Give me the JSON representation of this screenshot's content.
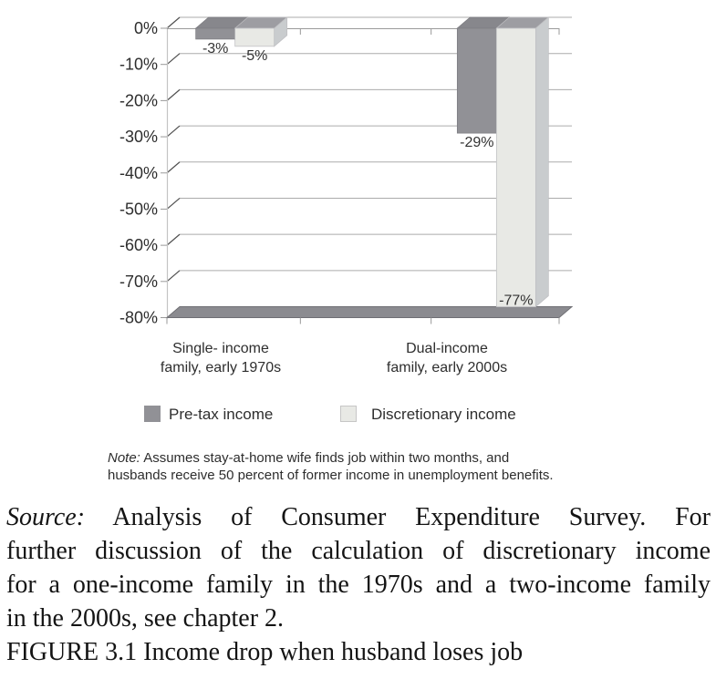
{
  "chart_data": {
    "type": "bar",
    "title": "",
    "xlabel": "",
    "ylabel": "",
    "categories": [
      {
        "line1": "Single- income",
        "line2": "family, early 1970s"
      },
      {
        "line1": "Dual-income",
        "line2": "family, early 2000s"
      }
    ],
    "series": [
      {
        "name": "Pre-tax income",
        "values": [
          -3,
          -29
        ],
        "labels": [
          "-3%",
          "-29%"
        ],
        "front_color": "#919196",
        "top_color": "#87878c",
        "side_color": "#a9a9ae",
        "edge_color": "#7d7d82"
      },
      {
        "name": "Discretionary income",
        "values": [
          -5,
          -77
        ],
        "labels": [
          "-5%",
          "-77%"
        ],
        "front_color": "#e8e9e5",
        "top_color": "#9d9da2",
        "side_color": "#c9ccce",
        "edge_color": "#bfbfc2"
      }
    ],
    "y_axis": {
      "min": -80,
      "max": 0,
      "tick_labels": [
        "0%",
        "-10%",
        "-20%",
        "-30%",
        "-40%",
        "-50%",
        "-60%",
        "-70%",
        "-80%"
      ]
    },
    "grid": true,
    "legend_position": "bottom",
    "colors": {
      "gridline": "#ababab",
      "connector": "#4f4f4f",
      "axis_line": "#c4c4c4",
      "front_line": "#9a9a9a",
      "floor_fill": "#8b8b90",
      "floor_edge": "#6f6f74"
    }
  },
  "legend": {
    "pretax_label": "Pre-tax income",
    "discretionary_label": "Discretionary income"
  },
  "note": {
    "prefix": "Note:",
    "line1_rest": "Assumes stay-at-home wife finds job within two months, and",
    "line2": "husbands receive 50 percent of former income in unemployment benefits."
  },
  "source": {
    "prefix": "Source:",
    "line1_rest": "Analysis of Consumer Expenditure Survey. For",
    "line2": "further discussion of the calculation of discretionary income",
    "line3": "for a one-income family in the 1970s and a two-income family",
    "line4": "in the 2000s, see chapter 2."
  },
  "caption": "FIGURE 3.1 Income drop when husband loses job"
}
